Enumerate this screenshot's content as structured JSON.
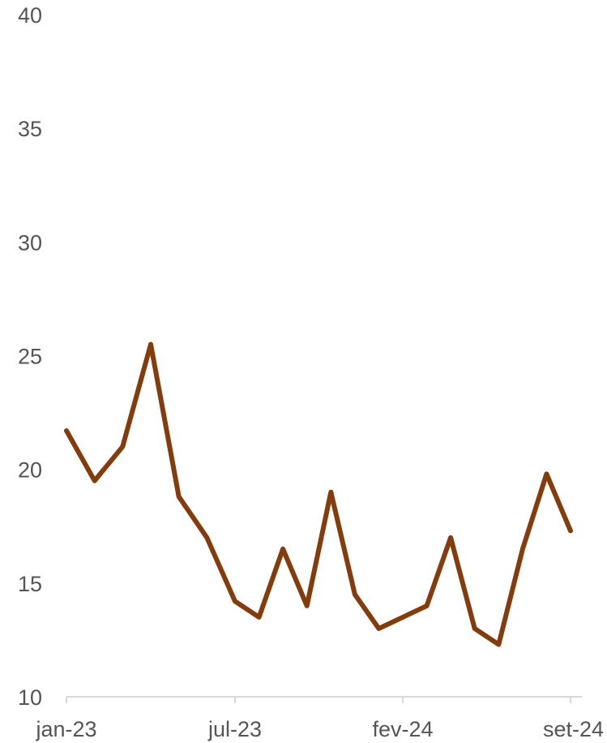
{
  "chart_data": {
    "type": "line",
    "title": "",
    "xlabel": "",
    "ylabel": "",
    "ylim": [
      10,
      40
    ],
    "y_ticks": [
      "10",
      "15",
      "20",
      "25",
      "30",
      "35",
      "40"
    ],
    "x_ticks": [
      "jan-23",
      "jul-23",
      "fev-24",
      "set-24"
    ],
    "grid": false,
    "legend": "none",
    "series": [
      {
        "color": "#843c0c",
        "x": [
          "2023-01",
          "2023-02",
          "2023-03",
          "2023-04",
          "2023-05",
          "2023-06",
          "2023-07",
          "2023-08",
          "2023-09",
          "2023-10",
          "2023-11",
          "2023-12",
          "2024-01",
          "2024-02",
          "2024-03",
          "2024-04",
          "2024-05",
          "2024-06",
          "2024-07",
          "2024-08",
          "2024-09"
        ],
        "values": [
          21.7,
          19.5,
          21.0,
          25.5,
          18.8,
          17.0,
          14.2,
          13.5,
          16.5,
          14.0,
          19.0,
          14.5,
          13.0,
          13.5,
          14.0,
          17.0,
          13.0,
          12.3,
          16.5,
          19.8,
          17.3
        ]
      }
    ]
  }
}
